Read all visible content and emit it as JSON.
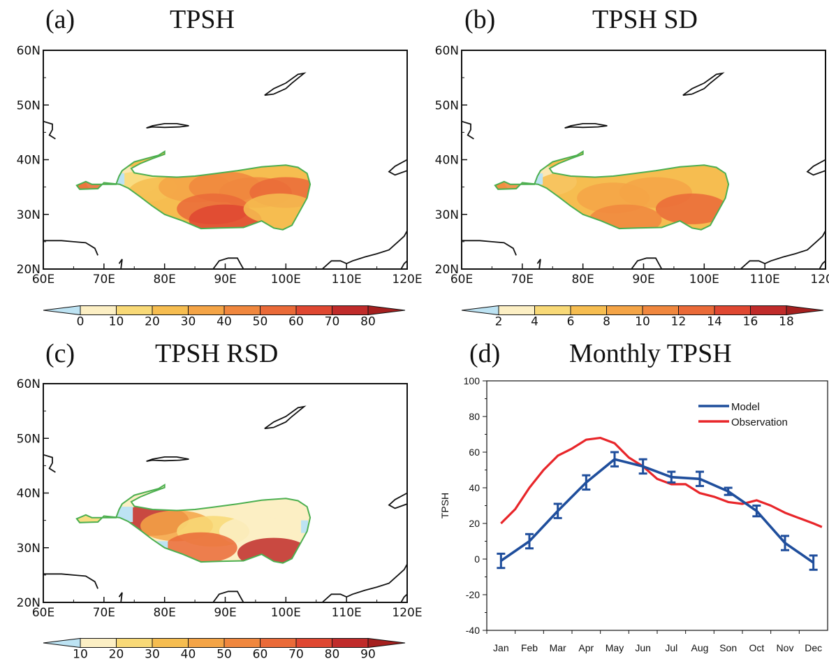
{
  "panels": {
    "a": {
      "label": "(a)",
      "title": "TPSH"
    },
    "b": {
      "label": "(b)",
      "title": "TPSH SD"
    },
    "c": {
      "label": "(c)",
      "title": "TPSH RSD"
    },
    "d": {
      "label": "(d)",
      "title": "Monthly TPSH"
    }
  },
  "map_axes": {
    "lon_ticks": [
      "60E",
      "70E",
      "80E",
      "90E",
      "100E",
      "110E",
      "120E"
    ],
    "lat_ticks": [
      "20N",
      "30N",
      "40N",
      "50N",
      "60N"
    ]
  },
  "colors": {
    "outline": "#4caf50",
    "coast": "#111111",
    "model": "#1f4e9c",
    "observation": "#e8262a",
    "ramp": [
      "#fcefc4",
      "#f8d977",
      "#f6bd50",
      "#f4a446",
      "#f0873e",
      "#ea6a38",
      "#df4731",
      "#c02b2a",
      "#a5201f"
    ],
    "below_min": "#bde3f3"
  },
  "colorbars": {
    "a": [
      "0",
      "10",
      "20",
      "30",
      "40",
      "50",
      "60",
      "70",
      "80"
    ],
    "b": [
      "2",
      "4",
      "6",
      "8",
      "10",
      "12",
      "14",
      "16",
      "18"
    ],
    "c": [
      "10",
      "20",
      "30",
      "40",
      "50",
      "60",
      "70",
      "80",
      "90"
    ]
  },
  "chart_data": [
    {
      "type": "heatmap",
      "panel": "a",
      "title": "TPSH",
      "xlim": [
        60,
        120
      ],
      "ylim": [
        20,
        60
      ],
      "colorbar_levels": [
        0,
        10,
        20,
        30,
        40,
        50,
        60,
        70,
        80
      ],
      "field": [
        {
          "lon": 73,
          "lat": 36,
          "level": 0
        },
        {
          "lon": 76,
          "lat": 35,
          "level": 1
        },
        {
          "lon": 80,
          "lat": 34,
          "level": 2
        },
        {
          "lon": 85,
          "lat": 35,
          "level": 3
        },
        {
          "lon": 90,
          "lat": 35,
          "level": 4
        },
        {
          "lon": 95,
          "lat": 34,
          "level": 4
        },
        {
          "lon": 100,
          "lat": 34,
          "level": 5
        },
        {
          "lon": 88,
          "lat": 31,
          "level": 5
        },
        {
          "lon": 90,
          "lat": 29,
          "level": 6
        },
        {
          "lon": 99,
          "lat": 31,
          "level": 2
        },
        {
          "lon": 67,
          "lat": 35,
          "level": 5
        }
      ]
    },
    {
      "type": "heatmap",
      "panel": "b",
      "title": "TPSH SD",
      "xlim": [
        60,
        120
      ],
      "ylim": [
        20,
        60
      ],
      "colorbar_levels": [
        2,
        4,
        6,
        8,
        10,
        12,
        14,
        16,
        18
      ],
      "field": [
        {
          "lon": 73,
          "lat": 36,
          "level": 0
        },
        {
          "lon": 78,
          "lat": 35,
          "level": 2
        },
        {
          "lon": 85,
          "lat": 33,
          "level": 3
        },
        {
          "lon": 92,
          "lat": 34,
          "level": 3
        },
        {
          "lon": 98,
          "lat": 31,
          "level": 5
        },
        {
          "lon": 87,
          "lat": 29,
          "level": 4
        },
        {
          "lon": 67,
          "lat": 35,
          "level": 4
        }
      ]
    },
    {
      "type": "heatmap",
      "panel": "c",
      "title": "TPSH RSD",
      "xlim": [
        60,
        120
      ],
      "ylim": [
        20,
        60
      ],
      "colorbar_levels": [
        10,
        20,
        30,
        40,
        50,
        60,
        70,
        80,
        90
      ],
      "field": [
        {
          "lon": 78,
          "lat": 35,
          "level": 7
        },
        {
          "lon": 82,
          "lat": 34,
          "level": 3
        },
        {
          "lon": 88,
          "lat": 33,
          "level": 1
        },
        {
          "lon": 95,
          "lat": 33,
          "level": 0
        },
        {
          "lon": 98,
          "lat": 29,
          "level": 7
        },
        {
          "lon": 86,
          "lat": 30,
          "level": 5
        },
        {
          "lon": 67,
          "lat": 34,
          "level": 1
        }
      ]
    },
    {
      "type": "line",
      "panel": "d",
      "title": "Monthly TPSH",
      "ylabel": "TPSH",
      "ylim": [
        -40,
        100
      ],
      "yticks": [
        -40,
        -20,
        0,
        20,
        40,
        60,
        80,
        100
      ],
      "categories": [
        "Jan",
        "Feb",
        "Mar",
        "Apr",
        "May",
        "Jun",
        "Jul",
        "Aug",
        "Son",
        "Oct",
        "Nov",
        "Dec"
      ],
      "legend": "top-right",
      "series": [
        {
          "name": "Model",
          "values": [
            -1,
            10,
            27,
            43,
            56,
            52,
            46,
            45,
            38,
            27,
            9,
            -2
          ],
          "error": [
            4,
            4,
            4,
            4,
            4,
            4,
            3,
            4,
            2,
            3,
            4,
            4
          ]
        },
        {
          "name": "Observation",
          "x": [
            0,
            0.5,
            1,
            1.5,
            2,
            2.5,
            3,
            3.5,
            4,
            4.5,
            5,
            5.5,
            6,
            6.5,
            7,
            7.5,
            8,
            8.5,
            9,
            9.5,
            10,
            10.5,
            11,
            11.3
          ],
          "values": [
            20,
            28,
            40,
            50,
            58,
            62,
            67,
            68,
            65,
            57,
            52,
            45,
            42,
            42,
            37,
            35,
            32,
            31,
            33,
            30,
            26,
            23,
            20,
            18
          ]
        }
      ]
    }
  ]
}
